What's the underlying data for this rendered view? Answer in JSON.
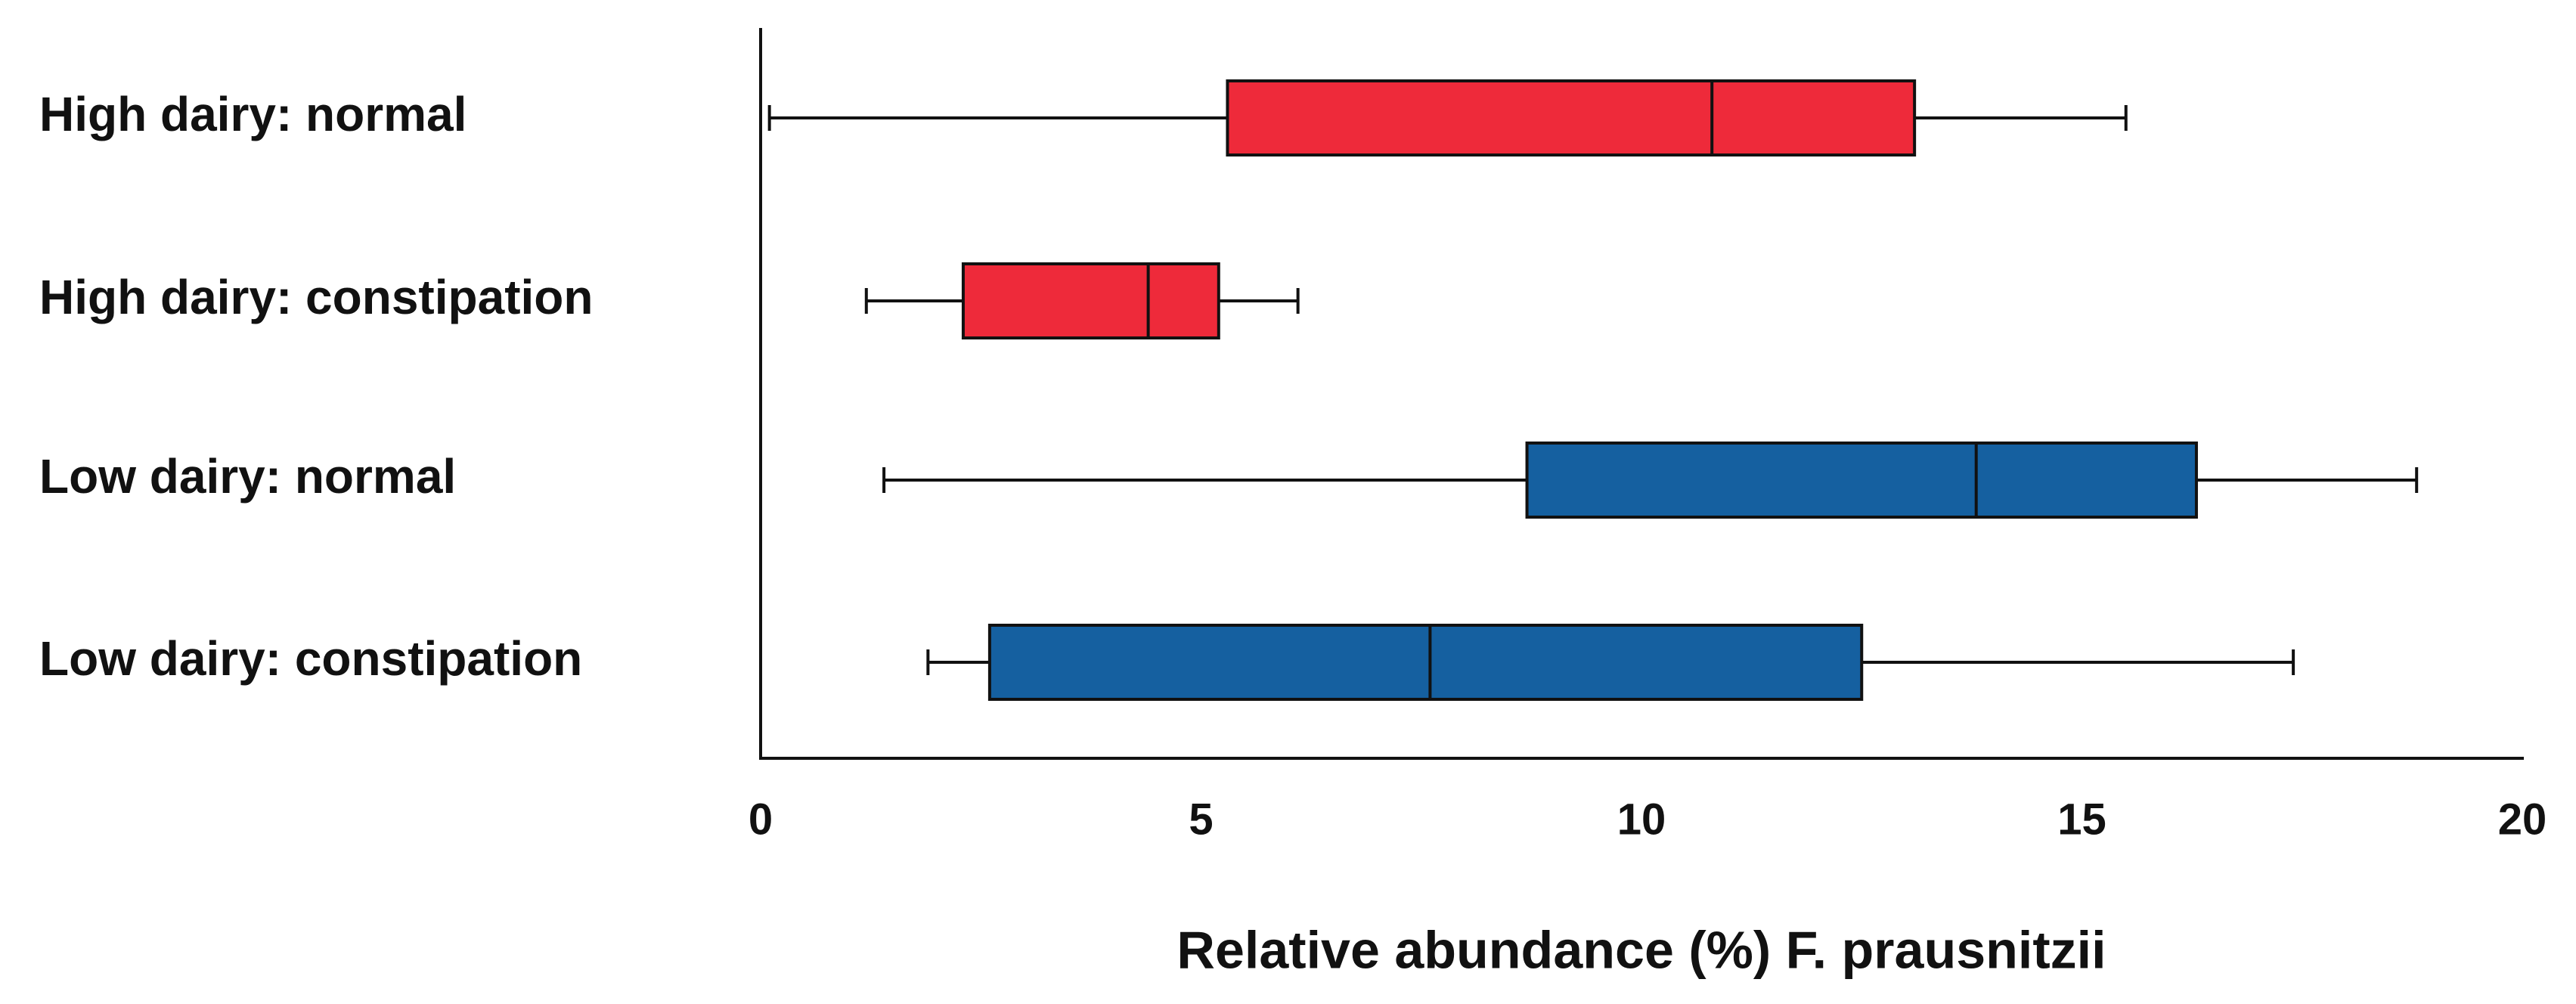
{
  "chart_data": {
    "type": "boxplot",
    "orientation": "horizontal",
    "x_label": "Relative abundance (%) F. prausnitzii",
    "categories": [
      "High dairy: normal",
      "High dairy: constipation",
      "Low dairy: normal",
      "Low dairy: constipation"
    ],
    "colors": [
      "#ee2a3a",
      "#ee2a3a",
      "#1560a0",
      "#1560a0"
    ],
    "min": [
      0.1,
      1.2,
      1.4,
      1.9
    ],
    "q1": [
      5.3,
      2.3,
      8.7,
      2.6
    ],
    "median": [
      10.8,
      4.4,
      13.8,
      7.6
    ],
    "q3": [
      13.1,
      5.2,
      16.3,
      12.5
    ],
    "max": [
      15.5,
      6.1,
      18.8,
      17.4
    ],
    "xlim": [
      0,
      20
    ],
    "xticks": [
      0,
      5,
      10,
      15,
      20
    ]
  }
}
